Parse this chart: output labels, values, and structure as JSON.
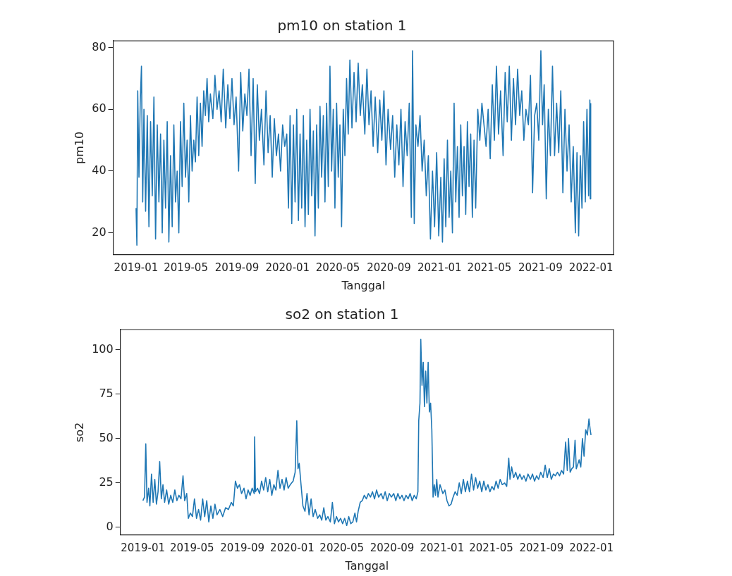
{
  "chart_data": [
    {
      "type": "line",
      "title": "pm10 on station 1",
      "xlabel": "Tanggal",
      "ylabel": "pm10",
      "xlim": [
        "2018-11-07",
        "2022-02-24"
      ],
      "xticks": [
        "2019-01",
        "2019-05",
        "2019-09",
        "2020-01",
        "2020-05",
        "2020-09",
        "2021-01",
        "2021-05",
        "2021-09",
        "2022-01"
      ],
      "ylim": [
        12.9,
        82.2
      ],
      "yticks": [
        20,
        40,
        60,
        80
      ],
      "grid": false,
      "legend": false,
      "marker": "none",
      "line_style": "solid",
      "series": [
        {
          "color": "#1f77b4",
          "x": [
            "2019-01-01",
            "2019-01-03",
            "2019-01-05",
            "2019-01-08",
            "2019-01-11",
            "2019-01-14",
            "2019-01-17",
            "2019-01-20",
            "2019-01-24",
            "2019-01-28",
            "2019-02-01",
            "2019-02-05",
            "2019-02-09",
            "2019-02-13",
            "2019-02-17",
            "2019-02-21",
            "2019-02-25",
            "2019-03-01",
            "2019-03-05",
            "2019-03-09",
            "2019-03-13",
            "2019-03-17",
            "2019-03-21",
            "2019-03-25",
            "2019-03-29",
            "2019-04-02",
            "2019-04-06",
            "2019-04-10",
            "2019-04-14",
            "2019-04-18",
            "2019-04-22",
            "2019-04-26",
            "2019-04-30",
            "2019-05-04",
            "2019-05-08",
            "2019-05-12",
            "2019-05-16",
            "2019-05-20",
            "2019-05-24",
            "2019-05-28",
            "2019-06-01",
            "2019-06-05",
            "2019-06-09",
            "2019-06-13",
            "2019-06-17",
            "2019-06-21",
            "2019-06-25",
            "2019-06-29",
            "2019-07-05",
            "2019-07-10",
            "2019-07-15",
            "2019-07-20",
            "2019-07-25",
            "2019-07-30",
            "2019-08-05",
            "2019-08-10",
            "2019-08-15",
            "2019-08-20",
            "2019-08-25",
            "2019-08-30",
            "2019-09-05",
            "2019-09-10",
            "2019-09-15",
            "2019-09-20",
            "2019-09-25",
            "2019-09-30",
            "2019-10-05",
            "2019-10-10",
            "2019-10-15",
            "2019-10-20",
            "2019-10-25",
            "2019-10-30",
            "2019-11-05",
            "2019-11-10",
            "2019-11-15",
            "2019-11-20",
            "2019-11-25",
            "2019-11-30",
            "2019-12-05",
            "2019-12-10",
            "2019-12-15",
            "2019-12-20",
            "2019-12-25",
            "2019-12-30",
            "2020-01-03",
            "2020-01-07",
            "2020-01-11",
            "2020-01-15",
            "2020-01-19",
            "2020-01-23",
            "2020-01-27",
            "2020-01-31",
            "2020-02-04",
            "2020-02-08",
            "2020-02-12",
            "2020-02-16",
            "2020-02-20",
            "2020-02-24",
            "2020-02-28",
            "2020-03-03",
            "2020-03-07",
            "2020-03-11",
            "2020-03-15",
            "2020-03-19",
            "2020-03-23",
            "2020-03-27",
            "2020-03-31",
            "2020-04-04",
            "2020-04-08",
            "2020-04-12",
            "2020-04-16",
            "2020-04-20",
            "2020-04-24",
            "2020-04-28",
            "2020-05-02",
            "2020-05-06",
            "2020-05-10",
            "2020-05-14",
            "2020-05-18",
            "2020-05-22",
            "2020-05-26",
            "2020-05-30",
            "2020-06-04",
            "2020-06-09",
            "2020-06-14",
            "2020-06-19",
            "2020-06-24",
            "2020-06-29",
            "2020-07-05",
            "2020-07-10",
            "2020-07-15",
            "2020-07-20",
            "2020-07-25",
            "2020-07-30",
            "2020-08-05",
            "2020-08-10",
            "2020-08-15",
            "2020-08-20",
            "2020-08-25",
            "2020-08-30",
            "2020-09-05",
            "2020-09-10",
            "2020-09-15",
            "2020-09-20",
            "2020-09-25",
            "2020-09-30",
            "2020-10-05",
            "2020-10-10",
            "2020-10-15",
            "2020-10-20",
            "2020-10-25",
            "2020-10-28",
            "2020-11-01",
            "2020-11-05",
            "2020-11-10",
            "2020-11-15",
            "2020-11-20",
            "2020-11-25",
            "2020-11-30",
            "2020-12-05",
            "2020-12-10",
            "2020-12-15",
            "2020-12-20",
            "2020-12-25",
            "2020-12-30",
            "2021-01-04",
            "2021-01-08",
            "2021-01-12",
            "2021-01-16",
            "2021-01-20",
            "2021-01-24",
            "2021-01-28",
            "2021-02-01",
            "2021-02-05",
            "2021-02-09",
            "2021-02-13",
            "2021-02-17",
            "2021-02-21",
            "2021-02-25",
            "2021-03-01",
            "2021-03-05",
            "2021-03-09",
            "2021-03-13",
            "2021-03-17",
            "2021-03-21",
            "2021-03-25",
            "2021-03-29",
            "2021-04-03",
            "2021-04-08",
            "2021-04-13",
            "2021-04-18",
            "2021-04-23",
            "2021-04-28",
            "2021-05-03",
            "2021-05-08",
            "2021-05-13",
            "2021-05-18",
            "2021-05-23",
            "2021-05-28",
            "2021-06-03",
            "2021-06-08",
            "2021-06-13",
            "2021-06-18",
            "2021-06-23",
            "2021-06-28",
            "2021-07-03",
            "2021-07-08",
            "2021-07-13",
            "2021-07-18",
            "2021-07-23",
            "2021-07-28",
            "2021-08-03",
            "2021-08-08",
            "2021-08-13",
            "2021-08-18",
            "2021-08-23",
            "2021-08-28",
            "2021-09-02",
            "2021-09-06",
            "2021-09-10",
            "2021-09-15",
            "2021-09-20",
            "2021-09-25",
            "2021-09-30",
            "2021-10-05",
            "2021-10-10",
            "2021-10-15",
            "2021-10-20",
            "2021-10-25",
            "2021-10-30",
            "2021-11-04",
            "2021-11-09",
            "2021-11-14",
            "2021-11-19",
            "2021-11-24",
            "2021-11-28",
            "2021-12-02",
            "2021-12-06",
            "2021-12-10",
            "2021-12-14",
            "2021-12-18",
            "2021-12-22",
            "2021-12-26",
            "2021-12-29",
            "2021-12-30",
            "2021-12-31"
          ],
          "values": [
            28,
            16,
            66,
            38,
            62,
            74,
            30,
            60,
            27,
            58,
            22,
            56,
            32,
            64,
            18,
            55,
            30,
            52,
            20,
            50,
            28,
            56,
            17,
            45,
            22,
            55,
            30,
            40,
            20,
            56,
            35,
            62,
            38,
            50,
            30,
            58,
            40,
            50,
            43,
            64,
            45,
            62,
            48,
            66,
            58,
            70,
            56,
            65,
            57,
            71,
            60,
            66,
            56,
            73,
            54,
            68,
            57,
            70,
            55,
            64,
            40,
            72,
            53,
            65,
            58,
            73,
            45,
            70,
            36,
            68,
            50,
            60,
            42,
            66,
            46,
            58,
            38,
            57,
            45,
            52,
            40,
            55,
            48,
            52,
            28,
            58,
            23,
            55,
            30,
            60,
            24,
            52,
            28,
            58,
            22,
            50,
            26,
            60,
            32,
            53,
            19,
            55,
            28,
            61,
            38,
            58,
            30,
            62,
            35,
            74,
            40,
            60,
            28,
            62,
            38,
            55,
            22,
            60,
            45,
            70,
            52,
            76,
            54,
            72,
            56,
            75,
            58,
            68,
            52,
            73,
            55,
            66,
            48,
            64,
            46,
            63,
            50,
            66,
            42,
            60,
            47,
            58,
            38,
            55,
            42,
            60,
            35,
            56,
            45,
            62,
            25,
            79,
            23,
            55,
            48,
            58,
            40,
            50,
            32,
            45,
            18,
            40,
            22,
            46,
            19,
            38,
            17,
            44,
            22,
            50,
            25,
            40,
            20,
            62,
            30,
            48,
            25,
            55,
            32,
            48,
            26,
            56,
            35,
            52,
            25,
            50,
            28,
            60,
            50,
            62,
            55,
            48,
            60,
            44,
            68,
            50,
            74,
            52,
            66,
            45,
            72,
            56,
            74,
            50,
            70,
            55,
            73,
            58,
            66,
            50,
            60,
            55,
            71,
            33,
            58,
            62,
            50,
            79,
            55,
            68,
            31,
            60,
            45,
            74,
            45,
            62,
            46,
            66,
            33,
            60,
            40,
            55,
            30,
            48,
            20,
            46,
            19,
            45,
            28,
            56,
            30,
            60,
            32,
            63,
            31,
            62
          ]
        }
      ]
    },
    {
      "type": "line",
      "title": "so2 on station 1",
      "xlabel": "Tanggal",
      "ylabel": "so2",
      "xlim": [
        "2018-11-07",
        "2022-02-24"
      ],
      "xticks": [
        "2019-01",
        "2019-05",
        "2019-09",
        "2020-01",
        "2020-05",
        "2020-09",
        "2021-01",
        "2021-05",
        "2021-09",
        "2022-01"
      ],
      "ylim": [
        -4.4,
        111.5
      ],
      "yticks": [
        0,
        25,
        50,
        75,
        100
      ],
      "grid": false,
      "legend": false,
      "marker": "none",
      "line_style": "solid",
      "series": [
        {
          "color": "#1f77b4",
          "x": [
            "2019-01-01",
            "2019-01-05",
            "2019-01-08",
            "2019-01-11",
            "2019-01-15",
            "2019-01-18",
            "2019-01-22",
            "2019-01-26",
            "2019-01-30",
            "2019-02-03",
            "2019-02-07",
            "2019-02-11",
            "2019-02-15",
            "2019-02-19",
            "2019-02-23",
            "2019-02-28",
            "2019-03-05",
            "2019-03-10",
            "2019-03-15",
            "2019-03-20",
            "2019-03-25",
            "2019-03-30",
            "2019-04-04",
            "2019-04-09",
            "2019-04-13",
            "2019-04-18",
            "2019-04-22",
            "2019-04-27",
            "2019-05-02",
            "2019-05-07",
            "2019-05-12",
            "2019-05-17",
            "2019-05-22",
            "2019-05-27",
            "2019-06-01",
            "2019-06-06",
            "2019-06-11",
            "2019-06-16",
            "2019-06-21",
            "2019-06-26",
            "2019-07-01",
            "2019-07-08",
            "2019-07-15",
            "2019-07-22",
            "2019-07-29",
            "2019-08-05",
            "2019-08-10",
            "2019-08-15",
            "2019-08-20",
            "2019-08-25",
            "2019-08-30",
            "2019-09-05",
            "2019-09-10",
            "2019-09-15",
            "2019-09-20",
            "2019-09-25",
            "2019-09-30",
            "2019-10-01",
            "2019-10-03",
            "2019-10-08",
            "2019-10-13",
            "2019-10-18",
            "2019-10-23",
            "2019-10-28",
            "2019-11-02",
            "2019-11-07",
            "2019-11-12",
            "2019-11-17",
            "2019-11-22",
            "2019-11-27",
            "2019-12-02",
            "2019-12-07",
            "2019-12-12",
            "2019-12-17",
            "2019-12-22",
            "2019-12-27",
            "2020-01-03",
            "2020-01-08",
            "2020-01-12",
            "2020-01-15",
            "2020-01-18",
            "2020-01-22",
            "2020-01-27",
            "2020-02-01",
            "2020-02-06",
            "2020-02-11",
            "2020-02-16",
            "2020-02-21",
            "2020-02-26",
            "2020-03-03",
            "2020-03-08",
            "2020-03-13",
            "2020-03-18",
            "2020-03-23",
            "2020-03-28",
            "2020-04-03",
            "2020-04-08",
            "2020-04-13",
            "2020-04-18",
            "2020-04-23",
            "2020-04-28",
            "2020-05-03",
            "2020-05-08",
            "2020-05-13",
            "2020-05-18",
            "2020-05-23",
            "2020-05-28",
            "2020-06-02",
            "2020-06-06",
            "2020-06-10",
            "2020-06-15",
            "2020-06-20",
            "2020-06-25",
            "2020-06-30",
            "2020-07-05",
            "2020-07-10",
            "2020-07-15",
            "2020-07-20",
            "2020-07-25",
            "2020-07-30",
            "2020-08-05",
            "2020-08-10",
            "2020-08-15",
            "2020-08-20",
            "2020-08-25",
            "2020-08-30",
            "2020-09-05",
            "2020-09-10",
            "2020-09-15",
            "2020-09-20",
            "2020-09-25",
            "2020-09-30",
            "2020-10-05",
            "2020-10-10",
            "2020-10-15",
            "2020-10-20",
            "2020-10-25",
            "2020-10-30",
            "2020-11-03",
            "2020-11-05",
            "2020-11-08",
            "2020-11-10",
            "2020-11-13",
            "2020-11-16",
            "2020-11-19",
            "2020-11-22",
            "2020-11-25",
            "2020-11-28",
            "2020-12-01",
            "2020-12-04",
            "2020-12-07",
            "2020-12-10",
            "2020-12-13",
            "2020-12-16",
            "2020-12-19",
            "2020-12-22",
            "2020-12-27",
            "2021-01-03",
            "2021-01-08",
            "2021-01-13",
            "2021-01-18",
            "2021-01-23",
            "2021-01-28",
            "2021-02-02",
            "2021-02-07",
            "2021-02-12",
            "2021-02-17",
            "2021-02-22",
            "2021-02-27",
            "2021-03-04",
            "2021-03-09",
            "2021-03-14",
            "2021-03-19",
            "2021-03-24",
            "2021-03-29",
            "2021-04-03",
            "2021-04-08",
            "2021-04-13",
            "2021-04-18",
            "2021-04-23",
            "2021-04-28",
            "2021-05-03",
            "2021-05-08",
            "2021-05-13",
            "2021-05-18",
            "2021-05-23",
            "2021-05-28",
            "2021-06-03",
            "2021-06-08",
            "2021-06-13",
            "2021-06-16",
            "2021-06-20",
            "2021-06-25",
            "2021-06-30",
            "2021-07-05",
            "2021-07-10",
            "2021-07-15",
            "2021-07-20",
            "2021-07-25",
            "2021-07-30",
            "2021-08-05",
            "2021-08-10",
            "2021-08-15",
            "2021-08-20",
            "2021-08-25",
            "2021-08-30",
            "2021-09-05",
            "2021-09-10",
            "2021-09-15",
            "2021-09-20",
            "2021-09-25",
            "2021-09-30",
            "2021-10-05",
            "2021-10-10",
            "2021-10-15",
            "2021-10-20",
            "2021-10-25",
            "2021-10-30",
            "2021-11-03",
            "2021-11-06",
            "2021-11-10",
            "2021-11-14",
            "2021-11-18",
            "2021-11-22",
            "2021-11-25",
            "2021-11-28",
            "2021-12-02",
            "2021-12-06",
            "2021-12-10",
            "2021-12-14",
            "2021-12-18",
            "2021-12-22",
            "2021-12-26",
            "2021-12-29",
            "2021-12-31"
          ],
          "values": [
            15,
            17,
            47,
            14,
            22,
            12,
            30,
            14,
            27,
            13,
            20,
            37,
            16,
            24,
            14,
            21,
            13,
            18,
            14,
            21,
            15,
            18,
            16,
            29,
            15,
            19,
            5,
            8,
            6,
            16,
            5,
            10,
            4,
            16,
            6,
            15,
            3,
            12,
            5,
            13,
            7,
            10,
            6,
            11,
            10,
            14,
            12,
            26,
            22,
            24,
            19,
            22,
            16,
            21,
            18,
            22,
            19,
            51,
            20,
            22,
            19,
            26,
            21,
            28,
            20,
            27,
            18,
            24,
            21,
            32,
            22,
            27,
            21,
            28,
            22,
            24,
            26,
            31,
            60,
            33,
            36,
            25,
            12,
            9,
            19,
            7,
            16,
            6,
            10,
            5,
            7,
            4,
            11,
            4,
            6,
            3,
            14,
            2,
            6,
            3,
            5,
            2,
            5,
            1,
            6,
            2,
            3,
            8,
            3,
            9,
            14,
            15,
            18,
            16,
            19,
            17,
            20,
            16,
            21,
            17,
            19,
            16,
            20,
            15,
            19,
            17,
            19,
            15,
            19,
            16,
            18,
            15,
            18,
            16,
            19,
            15,
            18,
            16,
            20,
            60,
            70,
            106,
            80,
            93,
            68,
            88,
            70,
            93,
            65,
            70,
            55,
            17,
            24,
            18,
            27,
            17,
            24,
            19,
            21,
            15,
            12,
            13,
            17,
            20,
            18,
            25,
            19,
            27,
            20,
            26,
            20,
            30,
            21,
            28,
            22,
            26,
            20,
            26,
            21,
            24,
            20,
            23,
            21,
            26,
            22,
            27,
            24,
            25,
            23,
            39,
            27,
            34,
            28,
            31,
            27,
            30,
            27,
            29,
            26,
            30,
            27,
            30,
            26,
            29,
            27,
            31,
            28,
            35,
            28,
            33,
            27,
            30,
            29,
            31,
            29,
            32,
            30,
            48,
            32,
            50,
            31,
            33,
            34,
            49,
            33,
            35,
            38,
            34,
            50,
            40,
            55,
            52,
            61,
            55,
            52
          ]
        }
      ]
    }
  ]
}
